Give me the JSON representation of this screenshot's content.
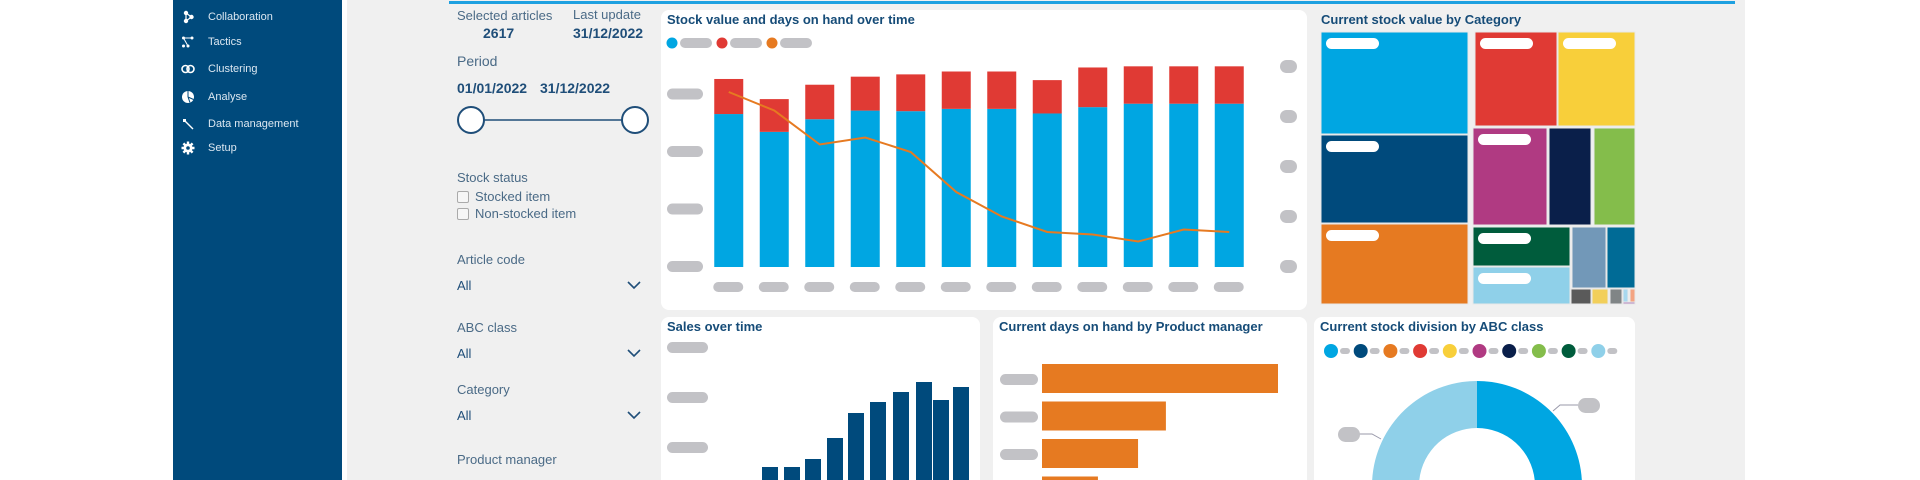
{
  "sidebar": {
    "items": [
      {
        "label": "Collaboration",
        "icon": "collaboration-icon"
      },
      {
        "label": "Tactics",
        "icon": "tactics-icon"
      },
      {
        "label": "Clustering",
        "icon": "clustering-icon"
      },
      {
        "label": "Analyse",
        "icon": "pie-chart-icon"
      },
      {
        "label": "Data management",
        "icon": "wrench-icon"
      },
      {
        "label": "Setup",
        "icon": "gear-icon"
      }
    ]
  },
  "filters": {
    "selected_articles_label": "Selected articles",
    "selected_articles_value": "2617",
    "last_update_label": "Last update",
    "last_update_value": "31/12/2022",
    "period_label": "Period",
    "period_start": "01/01/2022",
    "period_end": "31/12/2022",
    "stock_status_label": "Stock status",
    "stock_status_options": [
      {
        "label": "Stocked item",
        "checked": false
      },
      {
        "label": "Non-stocked item",
        "checked": false
      }
    ],
    "article_code_label": "Article code",
    "article_code_value": "All",
    "abc_class_label": "ABC class",
    "abc_class_value": "All",
    "category_label": "Category",
    "category_value": "All",
    "product_manager_label": "Product manager"
  },
  "colors": {
    "sidebar": "#004a7c",
    "title": "#164c78",
    "blue": "#00a6e2",
    "red": "#e03a34",
    "orange": "#e67a21",
    "navy": "#004a7c",
    "placeholder": "#c2c2c6"
  },
  "chart_data": [
    {
      "id": "stock-value-days",
      "type": "bar",
      "title": "Stock value and days on hand over time",
      "stacked": true,
      "legend": "top-left",
      "series": [
        {
          "color": "#00a6e2",
          "values": [
            2.66,
            2.35,
            2.57,
            2.72,
            2.71,
            2.75,
            2.75,
            2.67,
            2.78,
            2.84,
            2.84,
            2.84
          ]
        },
        {
          "color": "#e03a34",
          "values": [
            0.61,
            0.57,
            0.6,
            0.59,
            0.64,
            0.65,
            0.65,
            0.58,
            0.69,
            0.65,
            0.65,
            0.65
          ]
        },
        {
          "type": "line",
          "axis": "right",
          "color": "#e67a21",
          "values": [
            3.5,
            3.13,
            2.45,
            2.59,
            2.3,
            1.5,
            1.01,
            0.7,
            0.65,
            0.51,
            0.75,
            0.7
          ]
        }
      ],
      "ylim": [
        0,
        3.6
      ],
      "y2lim": [
        0,
        4.14
      ],
      "grid": false
    },
    {
      "id": "stock-value-category",
      "type": "treemap",
      "title": "Current stock value by Category",
      "values": [
        {
          "value": 18.4,
          "color": "#00a6e2"
        },
        {
          "value": 15.8,
          "color": "#004a7c"
        },
        {
          "value": 14.4,
          "color": "#e67a21"
        },
        {
          "value": 9.4,
          "color": "#e03a34"
        },
        {
          "value": 8.8,
          "color": "#f8cf3a"
        },
        {
          "value": 8.7,
          "color": "#b03a82"
        },
        {
          "value": 5.0,
          "color": "#0a1f4a"
        },
        {
          "value": 4.9,
          "color": "#84bd4b"
        },
        {
          "value": 4.7,
          "color": "#005c3c"
        },
        {
          "value": 4.4,
          "color": "#8fd0e9"
        },
        {
          "value": 2.5,
          "color": "#7298b8"
        },
        {
          "value": 2.1,
          "color": "#006b96"
        },
        {
          "value": 0.37,
          "color": "#5a5a5a"
        },
        {
          "value": 0.29,
          "color": "#f2cf5a"
        },
        {
          "value": 0.22,
          "color": "#808586"
        },
        {
          "value": 0.09,
          "color": "#a8d8ee"
        },
        {
          "value": 0.08,
          "color": "#f4a482"
        },
        {
          "value": 0.02,
          "color": "#b48ac0"
        }
      ]
    },
    {
      "id": "sales-over-time",
      "type": "bar",
      "title": "Sales over time",
      "color": "#004a7c",
      "values": [
        0.62,
        0.62,
        0.78,
        1.2,
        1.7,
        1.92,
        2.12,
        2.32,
        1.96,
        2.22
      ],
      "ylim": [
        0,
        3.6
      ]
    },
    {
      "id": "days-on-hand-pm",
      "type": "bar",
      "orientation": "horizontal",
      "title": "Current days on hand by Product manager",
      "color": "#e67a21",
      "values": [
        100,
        52.5,
        40.7,
        23.7
      ],
      "xlim": [
        0,
        100
      ]
    },
    {
      "id": "stock-division-abc",
      "type": "pie",
      "donut": true,
      "title": "Current stock division by ABC class",
      "legend": "top",
      "legend_colors": [
        "#00a6e2",
        "#004a7c",
        "#e67a21",
        "#e03a34",
        "#f8cf3a",
        "#b03a82",
        "#0a1f4a",
        "#84bd4b",
        "#005c3c",
        "#8fd0e9"
      ],
      "values": [
        {
          "value": 50,
          "color": "#00a6e2"
        },
        {
          "value": 50,
          "color": "#8fd0e9"
        }
      ]
    }
  ]
}
